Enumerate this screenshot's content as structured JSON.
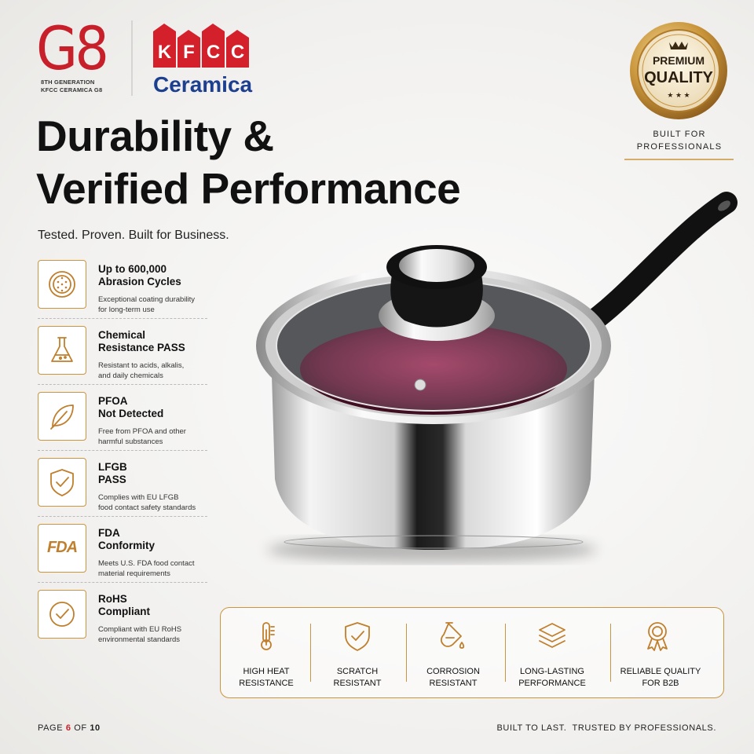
{
  "logo": {
    "mark": "G8",
    "line1": "8TH GENERATION",
    "line2": "KFCC CERAMICA G8",
    "brand_letters": [
      "K",
      "F",
      "C",
      "C"
    ],
    "brand_sub": "Ceramica"
  },
  "badge": {
    "line1": "PREMIUM",
    "line2": "QUALITY",
    "caption1": "BUILT FOR",
    "caption2": "PROFESSIONALS"
  },
  "header": {
    "title1": "Durability &",
    "title2": "Verified Performance",
    "subtitle": "Tested. Proven. Built for Business."
  },
  "features": [
    {
      "title": [
        "Up to 600,000",
        "Abrasion Cycles"
      ],
      "description": [
        "Exceptional coating durability",
        "for long-term use"
      ]
    },
    {
      "title": [
        "Chemical",
        "Resistance PASS"
      ],
      "description": [
        "Resistant to acids, alkalis,",
        "and daily chemicals"
      ]
    },
    {
      "title": [
        "PFOA",
        "Not Detected"
      ],
      "description": [
        "Free from PFOA and other",
        "harmful substances"
      ]
    },
    {
      "title": [
        "LFGB",
        "PASS"
      ],
      "description": [
        "Complies with EU LFGB",
        "food contact safety standards"
      ]
    },
    {
      "title": [
        "FDA",
        "Conformity"
      ],
      "description": [
        "Meets U.S. FDA food contact",
        "material requirements"
      ],
      "icon_text": "FDA"
    },
    {
      "title": [
        "RoHS",
        "Compliant"
      ],
      "description": [
        "Compliant with EU RoHS",
        "environmental standards"
      ]
    }
  ],
  "highlights": [
    {
      "label": [
        "HIGH HEAT",
        "RESISTANCE"
      ]
    },
    {
      "label": [
        "SCRATCH",
        "RESISTANT"
      ]
    },
    {
      "label": [
        "CORROSION",
        "RESISTANT"
      ]
    },
    {
      "label": [
        "LONG-LASTING",
        "PERFORMANCE"
      ]
    },
    {
      "label": [
        "RELIABLE QUALITY",
        "FOR B2B"
      ]
    }
  ],
  "footer": {
    "page_label": "PAGE",
    "page": 6,
    "of_label": "OF",
    "total": 10,
    "tagline": "BUILT TO LAST.  TRUSTED BY PROFESSIONALS."
  }
}
